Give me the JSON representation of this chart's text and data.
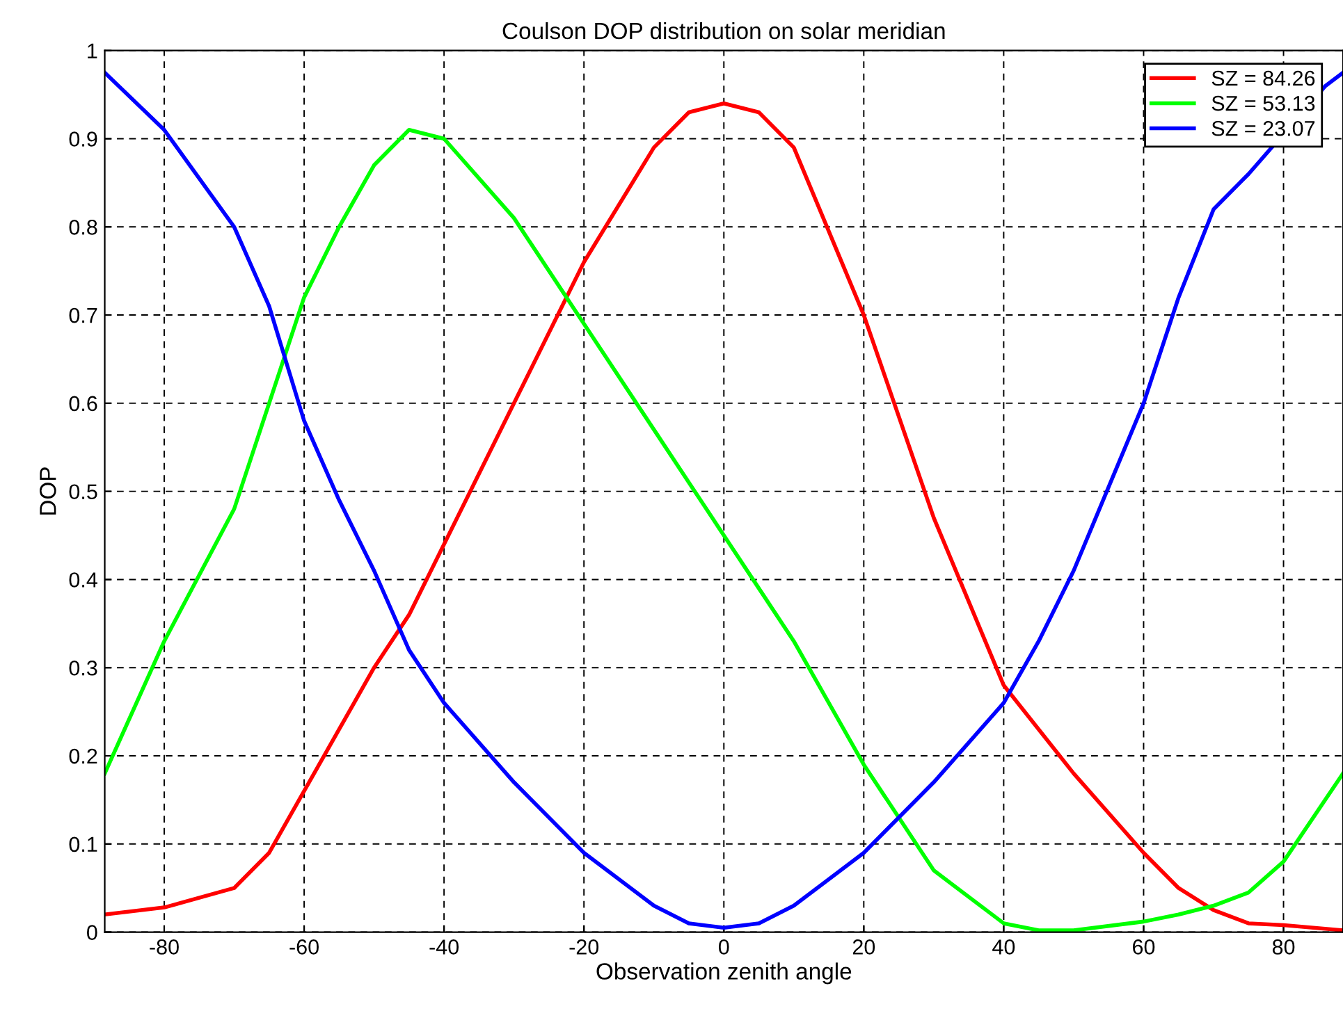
{
  "chart_data": {
    "type": "line",
    "title": "Coulson DOP distribution on solar meridian",
    "xlabel": "Observation zenith angle",
    "ylabel": "DOP",
    "x": [
      -88.5,
      -80,
      -70,
      -65,
      -60,
      -55,
      -50,
      -45,
      -40,
      -30,
      -20,
      -10,
      -5,
      0,
      5,
      10,
      20,
      30,
      40,
      45,
      50,
      60,
      65,
      70,
      75,
      80,
      88.5
    ],
    "series": [
      {
        "name": "SZ = 84.26",
        "color": "#ff0000",
        "values": [
          0.02,
          0.028,
          0.05,
          0.09,
          0.16,
          0.23,
          0.3,
          0.36,
          0.44,
          0.6,
          0.76,
          0.89,
          0.93,
          0.94,
          0.93,
          0.89,
          0.7,
          0.47,
          0.28,
          0.23,
          0.18,
          0.09,
          0.05,
          0.025,
          0.01,
          0.008,
          0.002
        ]
      },
      {
        "name": "SZ = 53.13",
        "color": "#00ff00",
        "values": [
          0.18,
          0.33,
          0.48,
          0.6,
          0.72,
          0.8,
          0.87,
          0.91,
          0.9,
          0.81,
          0.69,
          0.57,
          0.51,
          0.45,
          0.39,
          0.33,
          0.19,
          0.07,
          0.01,
          0.002,
          0.002,
          0.012,
          0.02,
          0.03,
          0.045,
          0.08,
          0.18
        ]
      },
      {
        "name": "SZ = 23.07",
        "color": "#0000ff",
        "x": [
          -88.5,
          -80,
          -70,
          -65,
          -60,
          -55,
          -50,
          -45,
          -40,
          -30,
          -20,
          -10,
          -5,
          0,
          5,
          10,
          20,
          30,
          40,
          45,
          50,
          60,
          65,
          70,
          75,
          86,
          88.5
        ],
        "values": [
          0.975,
          0.91,
          0.8,
          0.71,
          0.58,
          0.49,
          0.41,
          0.32,
          0.26,
          0.17,
          0.09,
          0.03,
          0.01,
          0.005,
          0.01,
          0.03,
          0.09,
          0.17,
          0.26,
          0.33,
          0.41,
          0.6,
          0.72,
          0.82,
          0.86,
          0.96,
          0.975
        ]
      }
    ],
    "xlim": [
      -88.5,
      88.5
    ],
    "ylim": [
      0,
      1
    ],
    "xticks": [
      -80,
      -60,
      -40,
      -20,
      0,
      20,
      40,
      60,
      80
    ],
    "yticks": [
      0,
      0.1,
      0.2,
      0.3,
      0.4,
      0.5,
      0.6,
      0.7,
      0.8,
      0.9,
      1
    ],
    "grid": true,
    "legend": "top right",
    "line_style": "solid",
    "marker": "none"
  }
}
